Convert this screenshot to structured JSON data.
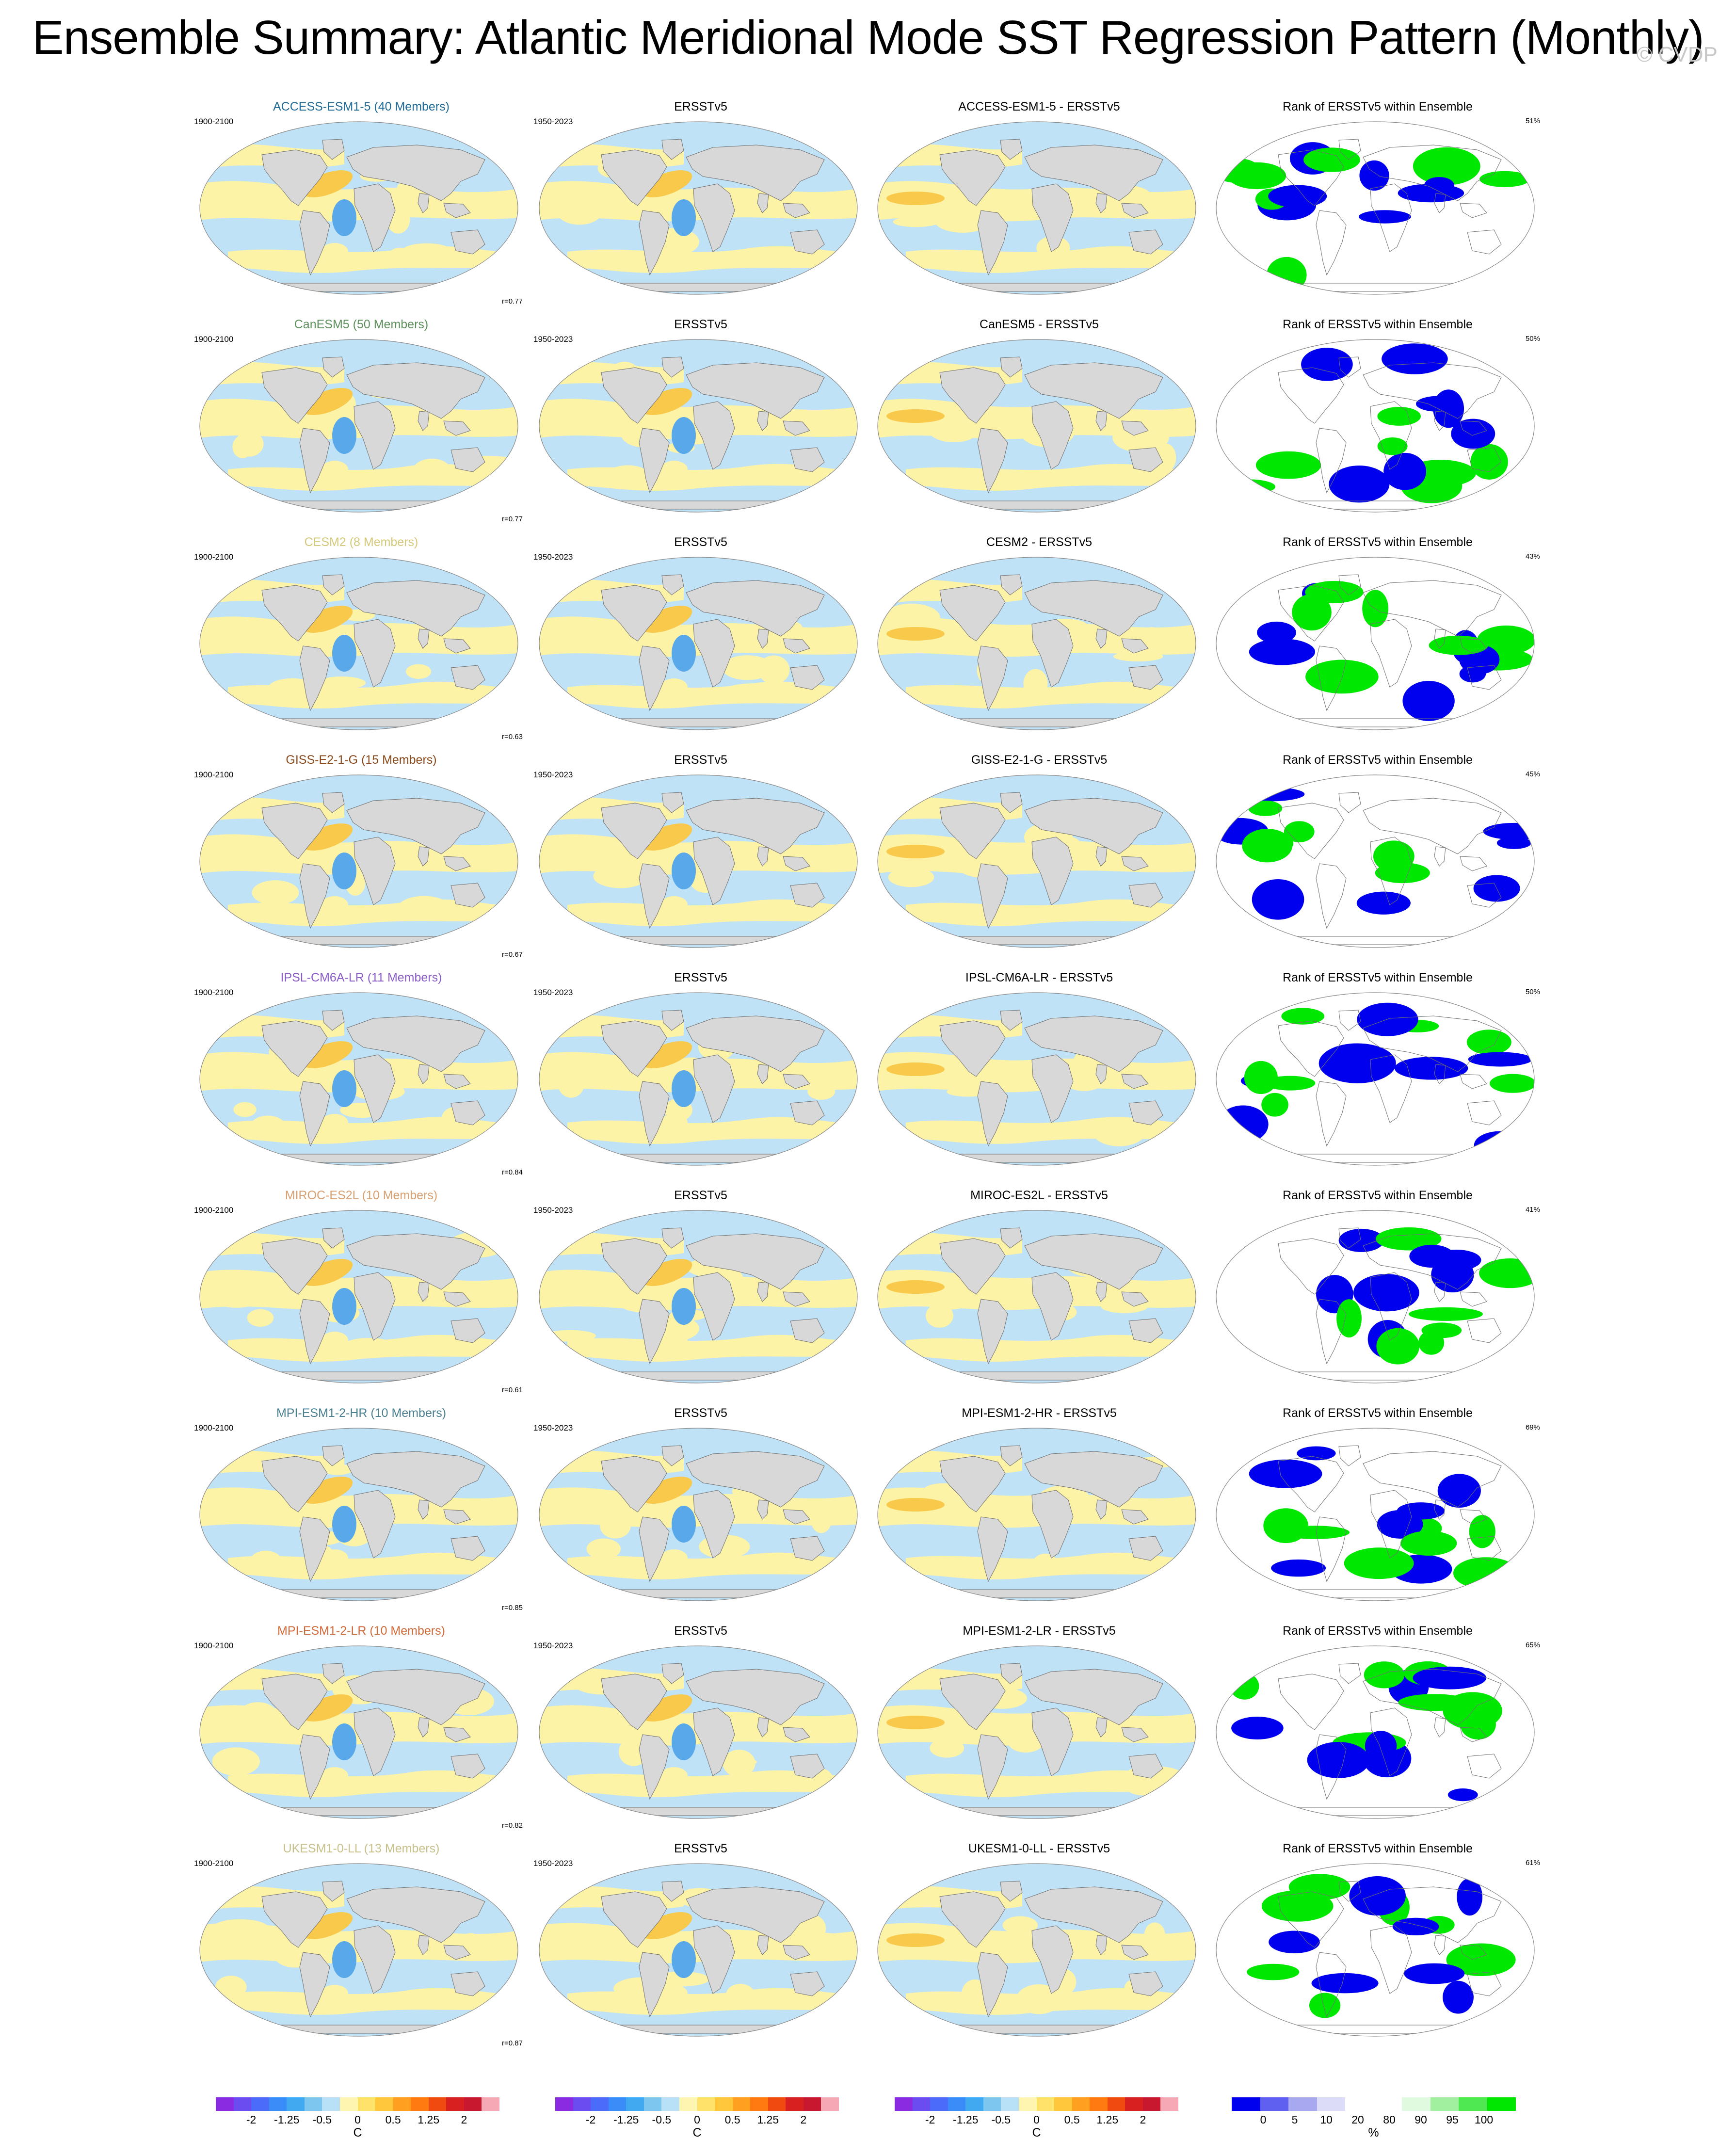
{
  "title": "Ensemble Summary: Atlantic Meridional Mode SST Regression Pattern (Monthly)",
  "watermark": "© CVDP",
  "rows": [
    {
      "model": "ACCESS-ESM1-5 (40 Members)",
      "model_color": "#1f6a96",
      "diff": "ACCESS-ESM1-5 - ERSSTv5",
      "r": "r=0.77",
      "rank_pct": "51%"
    },
    {
      "model": "CanESM5 (50 Members)",
      "model_color": "#5d8f5b",
      "diff": "CanESM5 - ERSSTv5",
      "r": "r=0.77",
      "rank_pct": "50%"
    },
    {
      "model": "CESM2 (8 Members)",
      "model_color": "#d4c97a",
      "diff": "CESM2 - ERSSTv5",
      "r": "r=0.63",
      "rank_pct": "43%"
    },
    {
      "model": "GISS-E2-1-G (15 Members)",
      "model_color": "#8a4a1c",
      "diff": "GISS-E2-1-G - ERSSTv5",
      "r": "r=0.67",
      "rank_pct": "45%"
    },
    {
      "model": "IPSL-CM6A-LR (11 Members)",
      "model_color": "#8a5cc8",
      "diff": "IPSL-CM6A-LR - ERSSTv5",
      "r": "r=0.84",
      "rank_pct": "50%"
    },
    {
      "model": "MIROC-ES2L (10 Members)",
      "model_color": "#d8a070",
      "diff": "MIROC-ES2L - ERSSTv5",
      "r": "r=0.61",
      "rank_pct": "41%"
    },
    {
      "model": "MPI-ESM1-2-HR (10 Members)",
      "model_color": "#4a7f8f",
      "diff": "MPI-ESM1-2-HR - ERSSTv5",
      "r": "r=0.85",
      "rank_pct": "69%"
    },
    {
      "model": "MPI-ESM1-2-LR (10 Members)",
      "model_color": "#d06a3a",
      "diff": "MPI-ESM1-2-LR - ERSSTv5",
      "r": "r=0.82",
      "rank_pct": "65%"
    },
    {
      "model": "UKESM1-0-LL (13 Members)",
      "model_color": "#c8c08a",
      "diff": "UKESM1-0-LL - ERSSTv5",
      "r": "r=0.87",
      "rank_pct": "61%"
    }
  ],
  "obs_title": "ERSSTv5",
  "rank_title": "Rank of ERSSTv5 within Ensemble",
  "model_period": "1900-2100",
  "obs_period": "1950-2023",
  "sst_colorbar": {
    "labels": [
      "-2",
      "-1.25",
      "-0.5",
      "0",
      "0.5",
      "1.25",
      "2"
    ],
    "unit": "C",
    "colors": [
      "#8a2be2",
      "#6a4cf0",
      "#4a6cf8",
      "#3a8cf8",
      "#40aaf0",
      "#7cc6f0",
      "#b8e0f6",
      "#fef6b0",
      "#ffe26a",
      "#ffc83c",
      "#ffa020",
      "#ff7a10",
      "#f04a10",
      "#d82020",
      "#c81830",
      "#f6a8b4"
    ]
  },
  "rank_colorbar": {
    "labels": [
      "0",
      "5",
      "10",
      "20",
      "80",
      "90",
      "95",
      "100"
    ],
    "unit": "%",
    "colors": [
      "#0000ee",
      "#6060f0",
      "#a8a8f0",
      "#dcdcf8",
      "#ffffff",
      "#ffffff",
      "#e0fae0",
      "#a0f0a0",
      "#50e850",
      "#00e800"
    ]
  },
  "map_colors": {
    "land": "#d8d8d8",
    "cool": "#bfe2f6",
    "warm": "#fdf3a6",
    "warm_strong": "#f8c94a",
    "cold_strong": "#58a8ea",
    "rank_low": "#0000ee",
    "rank_high": "#00e800"
  }
}
